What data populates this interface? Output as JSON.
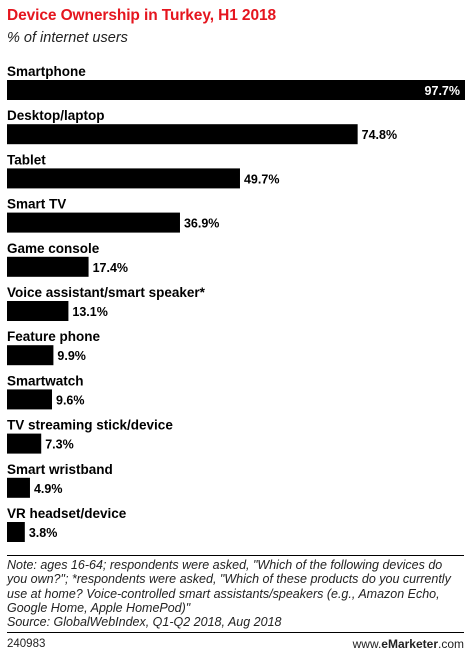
{
  "title": "Device Ownership in Turkey, H1 2018",
  "subtitle": "% of internet users",
  "chart_data": {
    "type": "bar",
    "orientation": "horizontal",
    "categories": [
      "Smartphone",
      "Desktop/laptop",
      "Tablet",
      "Smart TV",
      "Game console",
      "Voice assistant/smart speaker*",
      "Feature phone",
      "Smartwatch",
      "TV streaming stick/device",
      "Smart wristband",
      "VR headset/device"
    ],
    "values": [
      97.7,
      74.8,
      49.7,
      36.9,
      17.4,
      13.1,
      9.9,
      9.6,
      7.3,
      4.9,
      3.8
    ],
    "value_labels": [
      "97.7%",
      "74.8%",
      "49.7%",
      "36.9%",
      "17.4%",
      "13.1%",
      "9.9%",
      "9.6%",
      "7.3%",
      "4.9%",
      "3.8%"
    ],
    "xlim": [
      0,
      97.7
    ],
    "bar_color": "#000000",
    "grid": false,
    "legend": "none"
  },
  "note": "Note: ages 16-64; respondents were asked, \"Which of the following devices do you own?\"; *respondents were asked, \"Which of these products do you currently use at home? Voice-controlled smart assistants/speakers (e.g., Amazon Echo, Google Home, Apple HomePod)\"",
  "source": "Source: GlobalWebIndex, Q1-Q2 2018, Aug 2018",
  "chart_code": "240983",
  "brand": {
    "prefix": "www.",
    "name": "eMarketer",
    "suffix": ".com"
  },
  "colors": {
    "title": "#e5151e",
    "bar": "#000000"
  }
}
